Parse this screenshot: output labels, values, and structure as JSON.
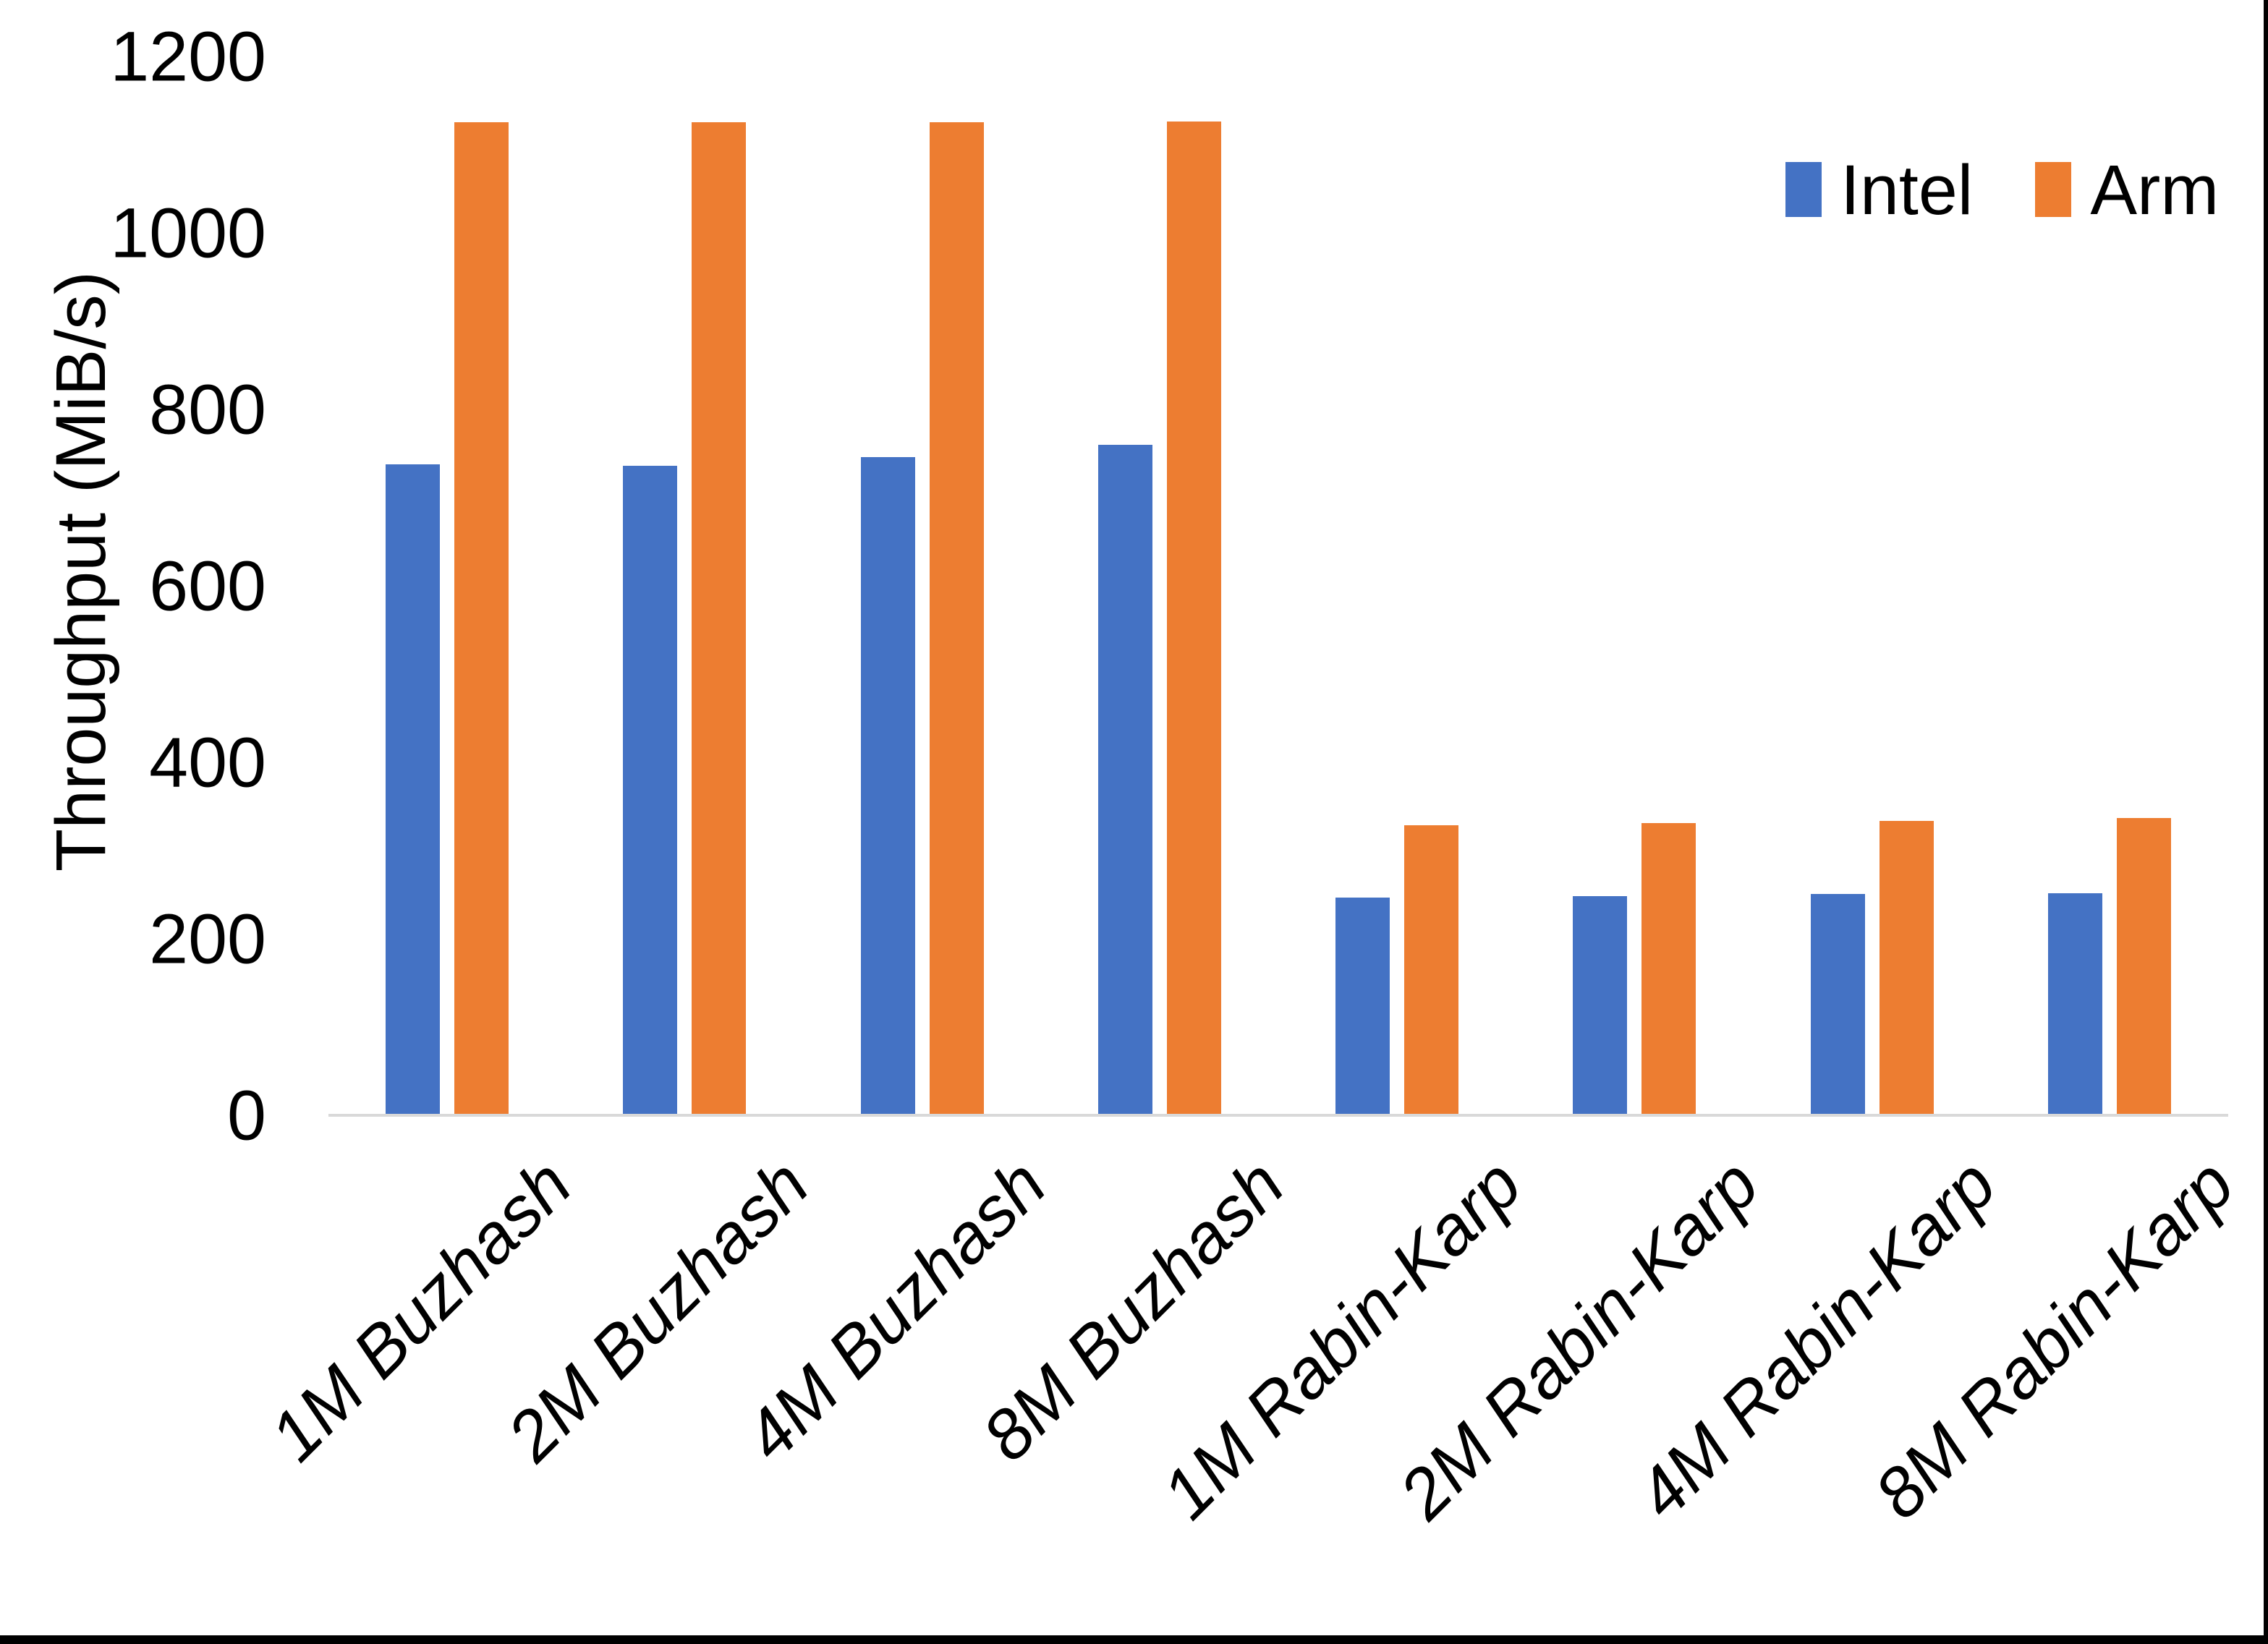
{
  "chart_data": {
    "type": "bar",
    "title": "",
    "xlabel": "",
    "ylabel": "Throughput (MiB/s)",
    "ylim": [
      0,
      1200
    ],
    "yticks": [
      0,
      200,
      400,
      600,
      800,
      1000,
      1200
    ],
    "grid": false,
    "legend_position": "top-right",
    "categories": [
      "1M Buzhash",
      "2M Buzhash",
      "4M Buzhash",
      "8M Buzhash",
      "1M Rabin-Karp",
      "2M Rabin-Karp",
      "4M Rabin-Karp",
      "8M Rabin-Karp"
    ],
    "series": [
      {
        "name": "Intel",
        "color": "#4472C4",
        "values": [
          738,
          736,
          746,
          760,
          247,
          248,
          251,
          252
        ]
      },
      {
        "name": "Arm",
        "color": "#ED7D31",
        "values": [
          1125,
          1125,
          1125,
          1126,
          329,
          331,
          334,
          337
        ]
      }
    ]
  },
  "colors": {
    "axis_line": "#D9D9D9",
    "text": "#000000",
    "background": "#FFFFFF",
    "window_edge": "#000000"
  }
}
